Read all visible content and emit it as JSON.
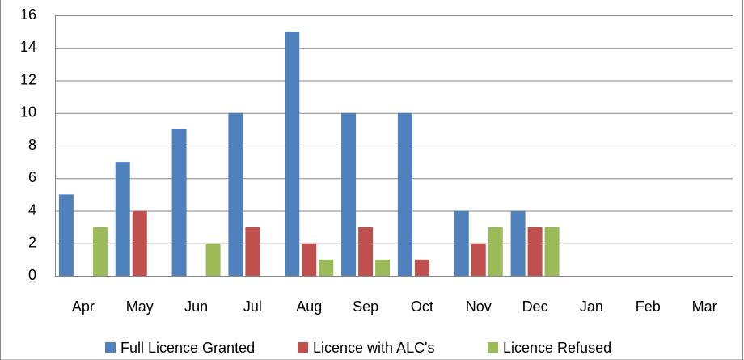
{
  "chart_data": {
    "type": "bar",
    "categories": [
      "Apr",
      "May",
      "Jun",
      "Jul",
      "Aug",
      "Sep",
      "Oct",
      "Nov",
      "Dec",
      "Jan",
      "Feb",
      "Mar"
    ],
    "series": [
      {
        "name": "Full Licence Granted",
        "color": "#4f81bd",
        "values": [
          5,
          7,
          9,
          10,
          15,
          10,
          10,
          4,
          4,
          null,
          null,
          null
        ]
      },
      {
        "name": "Licence with ALC's",
        "color": "#c0504d",
        "values": [
          null,
          4,
          null,
          3,
          2,
          3,
          1,
          2,
          3,
          null,
          null,
          null
        ]
      },
      {
        "name": "Licence Refused",
        "color": "#9bbb59",
        "values": [
          3,
          null,
          2,
          null,
          1,
          1,
          null,
          3,
          3,
          null,
          null,
          null
        ]
      }
    ],
    "ylim": [
      0,
      16
    ],
    "yticks": [
      0,
      2,
      4,
      6,
      8,
      10,
      12,
      14,
      16
    ],
    "grid": true,
    "legend": "bottom"
  }
}
